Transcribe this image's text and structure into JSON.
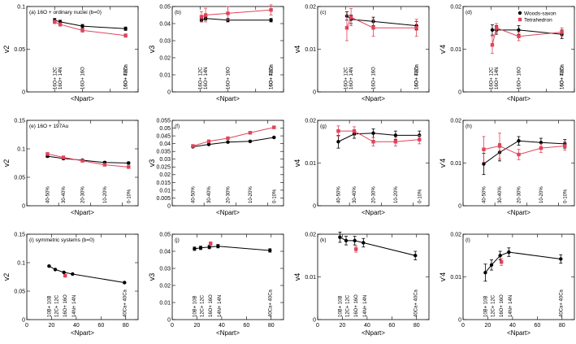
{
  "colors": {
    "woods_saxon": "#000000",
    "tetrahedron": "#e0445a"
  },
  "legend": [
    "Woods-saxon",
    "Tetrahedron"
  ],
  "xlabel": "<Npart>",
  "chart_data": [
    {
      "type": "scatter",
      "panel_label": "(a) 16O + ordinary nuclei (b=0)",
      "ylabel": "v2",
      "xlim": [
        10,
        90
      ],
      "ylim": [
        0,
        0.1
      ],
      "yticks": [
        "0",
        "0.05",
        "0.1"
      ],
      "xticks": [
        "",
        "",
        "",
        "",
        ""
      ],
      "annotations": [
        "16O+ 12C",
        "16O+ 14N",
        "16O+ 16O",
        "16O+ 40Ca",
        "16O+ 72Zr"
      ],
      "annotation_x": [
        30,
        34,
        50,
        81,
        81
      ],
      "series": [
        {
          "name": "Woods-saxon",
          "x": [
            30,
            34,
            50,
            81
          ],
          "y": [
            0.084,
            0.082,
            0.077,
            0.074
          ],
          "err": [
            0.002,
            0.002,
            0.002,
            0.002
          ]
        },
        {
          "name": "Tetrahedron",
          "x": [
            30,
            34,
            50,
            81
          ],
          "y": [
            0.082,
            0.079,
            0.072,
            0.066
          ],
          "err": [
            0.002,
            0.002,
            0.002,
            0.002
          ]
        }
      ]
    },
    {
      "type": "scatter",
      "panel_label": "(b)",
      "ylabel": "v3",
      "xlim": [
        10,
        90
      ],
      "ylim": [
        0,
        0.05
      ],
      "yticks": [
        "0",
        "0.01",
        "0.02",
        "0.03",
        "0.04",
        "0.05"
      ],
      "xticks": [
        "",
        "",
        "",
        "",
        ""
      ],
      "annotations": [
        "16O+ 12C",
        "16O+ 14N",
        "16O+ 16O",
        "16O+ 40Ca",
        "16O+ 72Zr"
      ],
      "annotation_x": [
        30,
        34,
        50,
        81,
        81
      ],
      "series": [
        {
          "name": "Woods-saxon",
          "x": [
            31,
            34,
            50,
            81
          ],
          "y": [
            0.042,
            0.043,
            0.042,
            0.042
          ],
          "err": [
            0.001,
            0.001,
            0.001,
            0.001
          ]
        },
        {
          "name": "Tetrahedron",
          "x": [
            31,
            34,
            50,
            81
          ],
          "y": [
            0.044,
            0.045,
            0.046,
            0.048
          ],
          "err": [
            0.003,
            0.004,
            0.004,
            0.003
          ]
        }
      ]
    },
    {
      "type": "scatter",
      "panel_label": "(c)",
      "ylabel": "v4",
      "xlim": [
        10,
        90
      ],
      "ylim": [
        0,
        0.02
      ],
      "yticks": [
        "0",
        "0.01",
        "0.02"
      ],
      "xticks": [
        "",
        "",
        "",
        "",
        ""
      ],
      "annotations": [
        "16O+ 12C",
        "16O+ 14N",
        "16O+ 16O",
        "16O+ 40Ca",
        "16O+ 72Zr"
      ],
      "annotation_x": [
        30,
        34,
        50,
        81,
        81
      ],
      "series": [
        {
          "name": "Woods-saxon",
          "x": [
            31,
            34,
            50,
            81
          ],
          "y": [
            0.0178,
            0.017,
            0.0165,
            0.0155
          ],
          "err": [
            0.001,
            0.001,
            0.001,
            0.001
          ]
        },
        {
          "name": "Tetrahedron",
          "x": [
            31,
            34,
            50,
            81
          ],
          "y": [
            0.015,
            0.0175,
            0.015,
            0.015
          ],
          "err": [
            0.003,
            0.002,
            0.002,
            0.002
          ]
        }
      ]
    },
    {
      "type": "scatter",
      "panel_label": "(d)",
      "ylabel": "v'4",
      "xlim": [
        10,
        90
      ],
      "ylim": [
        0,
        0.02
      ],
      "yticks": [
        "0",
        "0.01",
        "0.02"
      ],
      "xticks": [
        "",
        "",
        "",
        "",
        ""
      ],
      "annotations": [
        "16O+ 12C",
        "16O+ 14N",
        "16O+ 16O",
        "16O+ 40Ca",
        "16O+ 72Zr"
      ],
      "annotation_x": [
        30,
        34,
        50,
        81,
        81
      ],
      "series": [
        {
          "name": "Woods-saxon",
          "x": [
            31,
            34,
            50,
            81
          ],
          "y": [
            0.0145,
            0.0145,
            0.0145,
            0.0135
          ],
          "err": [
            0.0012,
            0.001,
            0.001,
            0.001
          ]
        },
        {
          "name": "Tetrahedron",
          "x": [
            31,
            34,
            50,
            81
          ],
          "y": [
            0.011,
            0.015,
            0.013,
            0.014
          ],
          "err": [
            0.002,
            0.001,
            0.001,
            0.001
          ]
        }
      ]
    },
    {
      "type": "scatter",
      "panel_label": "(e) 16O + 197Au",
      "ylabel": "v2",
      "xlim": [
        20,
        90
      ],
      "ylim": [
        0,
        0.15
      ],
      "yticks": [
        "0",
        "0.05",
        "0.1",
        "0.15"
      ],
      "xticks": [
        "",
        "",
        "",
        "",
        ""
      ],
      "annotations": [
        "40-50%",
        "30-40%",
        "20-30%",
        "10-20%",
        "0-10%"
      ],
      "annotation_x": [
        33,
        43,
        55,
        69,
        84
      ],
      "series": [
        {
          "name": "Woods-saxon",
          "x": [
            33,
            43,
            55,
            69,
            84
          ],
          "y": [
            0.087,
            0.083,
            0.08,
            0.076,
            0.075
          ],
          "err": [
            0.002,
            0.002,
            0.002,
            0.002,
            0.002
          ]
        },
        {
          "name": "Tetrahedron",
          "x": [
            33,
            43,
            55,
            69,
            84
          ],
          "y": [
            0.091,
            0.085,
            0.079,
            0.072,
            0.068
          ],
          "err": [
            0.002,
            0.002,
            0.002,
            0.002,
            0.002
          ]
        }
      ]
    },
    {
      "type": "scatter",
      "panel_label": "(f)",
      "ylabel": "v3",
      "xlim": [
        20,
        90
      ],
      "ylim": [
        0,
        0.055
      ],
      "yticks": [
        "0",
        "0.005",
        "0.01",
        "0.015",
        "0.02",
        "0.025",
        "0.03",
        "0.035",
        "0.04",
        "0.045",
        "0.05",
        "0.055"
      ],
      "xticks": [
        "",
        "",
        "",
        "",
        ""
      ],
      "annotations": [
        "40-50%",
        "30-40%",
        "20-30%",
        "10-20%",
        "0-10%"
      ],
      "annotation_x": [
        33,
        43,
        55,
        69,
        84
      ],
      "series": [
        {
          "name": "Woods-saxon",
          "x": [
            33,
            43,
            55,
            69,
            84
          ],
          "y": [
            0.038,
            0.0395,
            0.041,
            0.0415,
            0.044
          ],
          "err": [
            0.0005,
            0.0005,
            0.0005,
            0.0005,
            0.0005
          ]
        },
        {
          "name": "Tetrahedron",
          "x": [
            33,
            43,
            55,
            69,
            84
          ],
          "y": [
            0.0385,
            0.0415,
            0.0435,
            0.047,
            0.0505
          ],
          "err": [
            0.0005,
            0.0005,
            0.0005,
            0.0005,
            0.0005
          ]
        }
      ]
    },
    {
      "type": "scatter",
      "panel_label": "(g)",
      "ylabel": "v4",
      "xlim": [
        20,
        90
      ],
      "ylim": [
        0,
        0.02
      ],
      "yticks": [
        "0",
        "0.01",
        "0.02"
      ],
      "xticks": [
        "",
        "",
        "",
        "",
        ""
      ],
      "annotations": [
        "40-50%",
        "30-40%",
        "20-30%",
        "10-20%",
        "0-10%"
      ],
      "annotation_x": [
        33,
        43,
        55,
        69,
        84
      ],
      "series": [
        {
          "name": "Woods-saxon",
          "x": [
            33,
            43,
            55,
            69,
            84
          ],
          "y": [
            0.015,
            0.0168,
            0.017,
            0.0165,
            0.0165
          ],
          "err": [
            0.0015,
            0.001,
            0.001,
            0.001,
            0.001
          ]
        },
        {
          "name": "Tetrahedron",
          "x": [
            33,
            43,
            55,
            69,
            84
          ],
          "y": [
            0.0175,
            0.0175,
            0.015,
            0.015,
            0.0155
          ],
          "err": [
            0.0012,
            0.001,
            0.001,
            0.001,
            0.001
          ]
        }
      ]
    },
    {
      "type": "scatter",
      "panel_label": "(h)",
      "ylabel": "v'4",
      "xlim": [
        20,
        90
      ],
      "ylim": [
        0,
        0.02
      ],
      "yticks": [
        "0",
        "0.01",
        "0.02"
      ],
      "xticks": [
        "",
        "",
        "",
        "",
        ""
      ],
      "annotations": [
        "40-50%",
        "30-40%",
        "20-30%",
        "10-20%",
        "0-10%"
      ],
      "annotation_x": [
        33,
        43,
        55,
        69,
        84
      ],
      "series": [
        {
          "name": "Woods-saxon",
          "x": [
            33,
            43,
            55,
            69,
            84
          ],
          "y": [
            0.0098,
            0.0125,
            0.0152,
            0.0148,
            0.0145
          ],
          "err": [
            0.0025,
            0.002,
            0.001,
            0.001,
            0.001
          ]
        },
        {
          "name": "Tetrahedron",
          "x": [
            33,
            43,
            55,
            69,
            84
          ],
          "y": [
            0.0132,
            0.014,
            0.012,
            0.0135,
            0.014
          ],
          "err": [
            0.003,
            0.003,
            0.0012,
            0.001,
            0.001
          ]
        }
      ]
    },
    {
      "type": "scatter",
      "panel_label": "(i) symmetric systems (b=0)",
      "ylabel": "v2",
      "xlim": [
        0,
        90
      ],
      "ylim": [
        0,
        0.15
      ],
      "yticks": [
        "0",
        "0.05",
        "0.1",
        "0.15"
      ],
      "xticks": [
        "0",
        "20",
        "40",
        "60",
        "80"
      ],
      "annotations": [
        "10B+ 10B",
        "12C+ 12C",
        "16O+ 16O",
        "14N+ 14N",
        "40Ca+ 40Ca"
      ],
      "annotation_x": [
        18,
        24,
        31,
        38,
        79
      ],
      "series": [
        {
          "name": "Woods-saxon",
          "x": [
            18,
            23,
            30,
            37,
            79
          ],
          "y": [
            0.094,
            0.088,
            0.083,
            0.08,
            0.065
          ],
          "err": [
            0.001,
            0.001,
            0.001,
            0.001,
            0.001
          ]
        },
        {
          "name": "Tetrahedron",
          "x": [
            31
          ],
          "y": [
            0.077
          ],
          "err": [
            0.001
          ]
        }
      ]
    },
    {
      "type": "scatter",
      "panel_label": "(j)",
      "ylabel": "v3",
      "xlim": [
        0,
        90
      ],
      "ylim": [
        0,
        0.05
      ],
      "yticks": [
        "0",
        "0.01",
        "0.02",
        "0.03",
        "0.04",
        "0.05"
      ],
      "xticks": [
        "0",
        "20",
        "40",
        "60",
        "80"
      ],
      "annotations": [
        "10B+ 10B",
        "12C+ 12C",
        "16O+ 16O",
        "14N+ 14N",
        "40Ca+ 40Ca"
      ],
      "annotation_x": [
        18,
        24,
        31,
        38,
        79
      ],
      "series": [
        {
          "name": "Woods-saxon",
          "x": [
            18,
            23,
            30,
            37,
            79
          ],
          "y": [
            0.0415,
            0.042,
            0.0425,
            0.043,
            0.0405
          ],
          "err": [
            0.001,
            0.001,
            0.001,
            0.001,
            0.001
          ]
        },
        {
          "name": "Tetrahedron",
          "x": [
            31
          ],
          "y": [
            0.0445
          ],
          "err": [
            0.001
          ]
        }
      ]
    },
    {
      "type": "scatter",
      "panel_label": "(k)",
      "ylabel": "v4",
      "xlim": [
        0,
        90
      ],
      "ylim": [
        0,
        0.02
      ],
      "yticks": [
        "0",
        "0.01",
        "0.02"
      ],
      "xticks": [
        "0",
        "20",
        "40",
        "60",
        "80"
      ],
      "annotations": [
        "10B+ 10B",
        "12C+ 12C",
        "16O+ 16O",
        "14N+ 14N",
        "40Ca+ 40Ca"
      ],
      "annotation_x": [
        18,
        24,
        31,
        38,
        79
      ],
      "series": [
        {
          "name": "Woods-saxon",
          "x": [
            18,
            23,
            30,
            37,
            79
          ],
          "y": [
            0.0193,
            0.0185,
            0.0185,
            0.018,
            0.015
          ],
          "err": [
            0.0012,
            0.001,
            0.001,
            0.001,
            0.001
          ]
        },
        {
          "name": "Tetrahedron",
          "x": [
            31
          ],
          "y": [
            0.0165
          ],
          "err": [
            0.0007
          ]
        }
      ]
    },
    {
      "type": "scatter",
      "panel_label": "(l)",
      "ylabel": "v'4",
      "xlim": [
        0,
        90
      ],
      "ylim": [
        0,
        0.02
      ],
      "yticks": [
        "0",
        "0.01",
        "0.02"
      ],
      "xticks": [
        "0",
        "20",
        "40",
        "60",
        "80"
      ],
      "annotations": [
        "10B+ 10B",
        "12C+ 12C",
        "16O+ 16O",
        "14N+ 14N",
        "40Ca+ 40Ca"
      ],
      "annotation_x": [
        18,
        24,
        31,
        38,
        79
      ],
      "series": [
        {
          "name": "Woods-saxon",
          "x": [
            18,
            23,
            30,
            37,
            79
          ],
          "y": [
            0.011,
            0.0128,
            0.015,
            0.0158,
            0.0142
          ],
          "err": [
            0.002,
            0.0012,
            0.001,
            0.001,
            0.001
          ]
        },
        {
          "name": "Tetrahedron",
          "x": [
            31
          ],
          "y": [
            0.0135
          ],
          "err": [
            0.0008
          ]
        }
      ]
    }
  ]
}
